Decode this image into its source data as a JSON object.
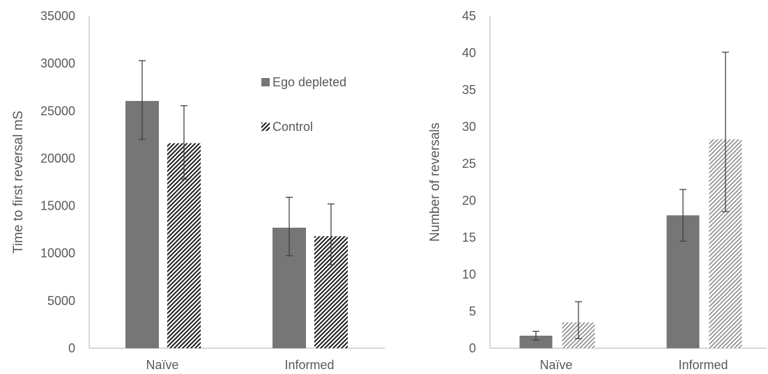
{
  "colors": {
    "ego_fill": "#767676",
    "control_stripe": "#1a1a1a",
    "control_stripe_light": "#8c8c8c",
    "axis": "#bfbfbf",
    "text": "#595959",
    "error_bar": "#404040"
  },
  "legend": {
    "items": [
      {
        "label": "Ego depleted",
        "pattern": "solid"
      },
      {
        "label": "Control",
        "pattern": "hatched"
      }
    ]
  },
  "chart_data": [
    {
      "type": "bar",
      "categories": [
        "Naïve",
        "Informed"
      ],
      "ylabel": "Time to first reversal mS",
      "xlabel": "",
      "ylim": [
        0,
        35000
      ],
      "yticks": [
        0,
        5000,
        10000,
        15000,
        20000,
        25000,
        30000,
        35000
      ],
      "series": [
        {
          "name": "Ego depleted",
          "values": [
            26050,
            12700
          ],
          "err_low": [
            22000,
            9750
          ],
          "err_high": [
            30300,
            15900
          ]
        },
        {
          "name": "Control",
          "values": [
            21600,
            11800
          ],
          "err_low": [
            17800,
            8800
          ],
          "err_high": [
            25550,
            15200
          ]
        }
      ]
    },
    {
      "type": "bar",
      "categories": [
        "Naïve",
        "Informed"
      ],
      "ylabel": "Number of reversals",
      "xlabel": "",
      "ylim": [
        0,
        45
      ],
      "yticks": [
        0,
        5,
        10,
        15,
        20,
        25,
        30,
        35,
        40,
        45
      ],
      "series": [
        {
          "name": "Ego depleted",
          "values": [
            1.7,
            18.0
          ],
          "err_low": [
            1.1,
            14.5
          ],
          "err_high": [
            2.3,
            21.5
          ]
        },
        {
          "name": "Control",
          "values": [
            3.5,
            28.3
          ],
          "err_low": [
            1.3,
            18.5
          ],
          "err_high": [
            6.3,
            40.1
          ]
        }
      ]
    }
  ]
}
